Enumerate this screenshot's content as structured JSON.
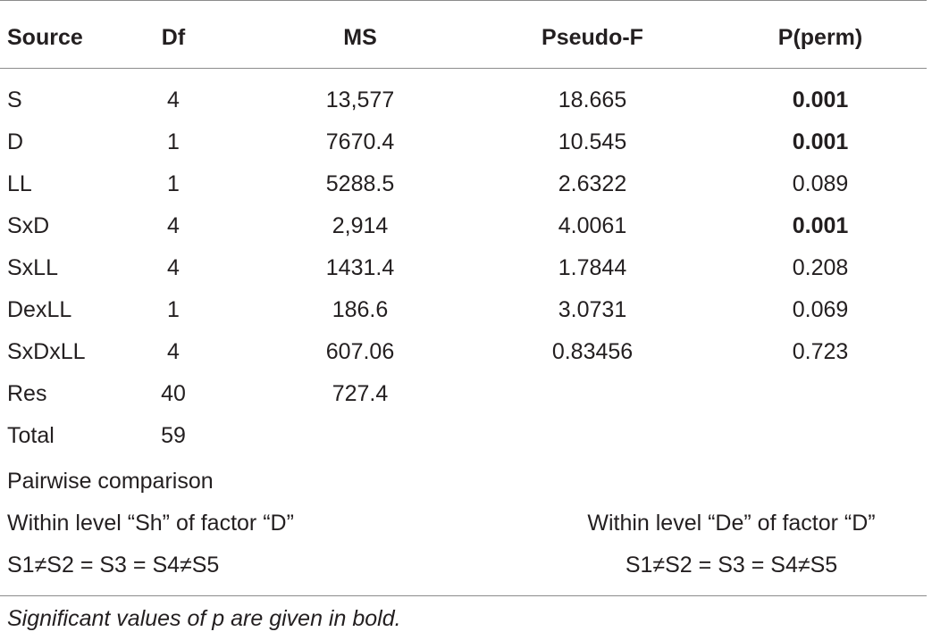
{
  "table": {
    "headers": [
      "Source",
      "Df",
      "MS",
      "Pseudo-F",
      "P(perm)"
    ],
    "rows": [
      {
        "source": "S",
        "df": "4",
        "ms": "13,577",
        "pseudo_f": "18.665",
        "p_perm": "0.001",
        "significant": true
      },
      {
        "source": "D",
        "df": "1",
        "ms": "7670.4",
        "pseudo_f": "10.545",
        "p_perm": "0.001",
        "significant": true
      },
      {
        "source": "LL",
        "df": "1",
        "ms": "5288.5",
        "pseudo_f": "2.6322",
        "p_perm": "0.089",
        "significant": false
      },
      {
        "source": "SxD",
        "df": "4",
        "ms": "2,914",
        "pseudo_f": "4.0061",
        "p_perm": "0.001",
        "significant": true
      },
      {
        "source": "SxLL",
        "df": "4",
        "ms": "1431.4",
        "pseudo_f": "1.7844",
        "p_perm": "0.208",
        "significant": false
      },
      {
        "source": "DexLL",
        "df": "1",
        "ms": "186.6",
        "pseudo_f": "3.0731",
        "p_perm": "0.069",
        "significant": false
      },
      {
        "source": "SxDxLL",
        "df": "4",
        "ms": "607.06",
        "pseudo_f": "0.83456",
        "p_perm": "0.723",
        "significant": false
      },
      {
        "source": "Res",
        "df": "40",
        "ms": "727.4",
        "pseudo_f": "",
        "p_perm": "",
        "significant": false
      },
      {
        "source": "Total",
        "df": "59",
        "ms": "",
        "pseudo_f": "",
        "p_perm": "",
        "significant": false
      }
    ],
    "pairwise": {
      "title": "Pairwise comparison",
      "left_heading": "Within level “Sh” of factor “D”",
      "left_result": "S1≠S2 = S3 = S4≠S5",
      "right_heading": "Within level “De” of factor “D”",
      "right_result": "S1≠S2 = S3 = S4≠S5"
    },
    "footnote": "Significant values of p are given in bold."
  }
}
